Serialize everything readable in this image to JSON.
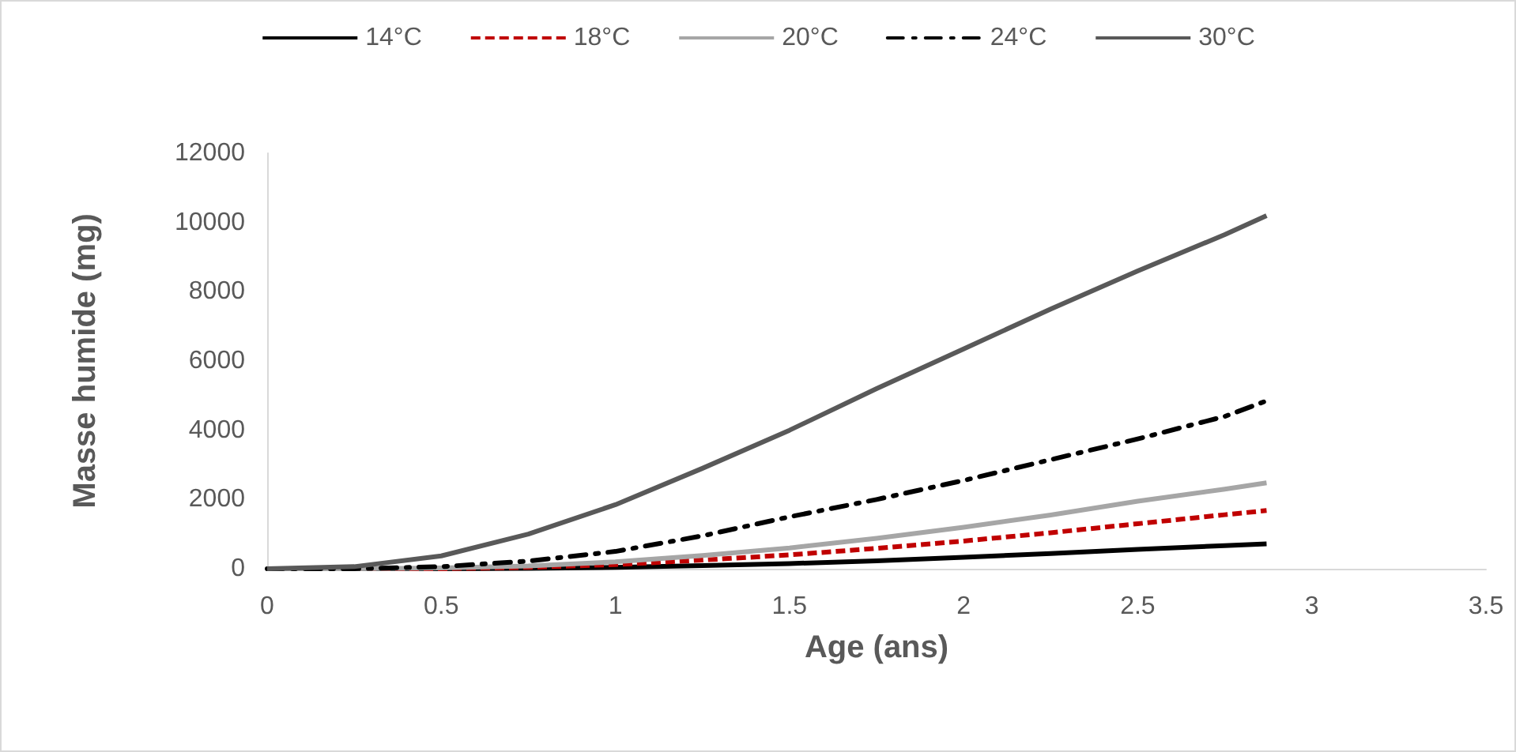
{
  "chart_data": {
    "type": "line",
    "xlabel": "Age (ans)",
    "ylabel": "Masse humide (mg)",
    "x": [
      0,
      0.25,
      0.5,
      0.75,
      1,
      1.25,
      1.5,
      1.75,
      2,
      2.25,
      2.5,
      2.75,
      2.87
    ],
    "series": [
      {
        "name": "14°C",
        "color": "#000000",
        "line_style": "solid",
        "values": [
          0,
          0,
          0,
          10,
          40,
          90,
          150,
          230,
          330,
          440,
          560,
          670,
          720
        ]
      },
      {
        "name": "18°C",
        "color": "#c00000",
        "line_style": "dashed",
        "values": [
          0,
          0,
          0,
          40,
          120,
          250,
          400,
          590,
          800,
          1040,
          1300,
          1560,
          1680
        ]
      },
      {
        "name": "20°C",
        "color": "#a6a6a6",
        "line_style": "solid",
        "values": [
          0,
          0,
          20,
          80,
          200,
          380,
          600,
          880,
          1200,
          1550,
          1950,
          2300,
          2480
        ]
      },
      {
        "name": "24°C",
        "color": "#000000",
        "line_style": "dashdot",
        "values": [
          0,
          0,
          60,
          220,
          500,
          950,
          1500,
          2000,
          2550,
          3150,
          3750,
          4400,
          4850
        ]
      },
      {
        "name": "30°C",
        "color": "#595959",
        "line_style": "solid",
        "values": [
          0,
          60,
          370,
          1000,
          1850,
          2900,
          4000,
          5200,
          6350,
          7500,
          8600,
          9650,
          10200
        ]
      }
    ],
    "xlim": [
      0,
      3.5
    ],
    "xticks": [
      0,
      0.5,
      1,
      1.5,
      2,
      2.5,
      3,
      3.5
    ],
    "ylim": [
      0,
      12000
    ],
    "yticks": [
      0,
      2000,
      4000,
      6000,
      8000,
      10000,
      12000
    ],
    "grid": false,
    "legend": "top",
    "marker": "none"
  }
}
